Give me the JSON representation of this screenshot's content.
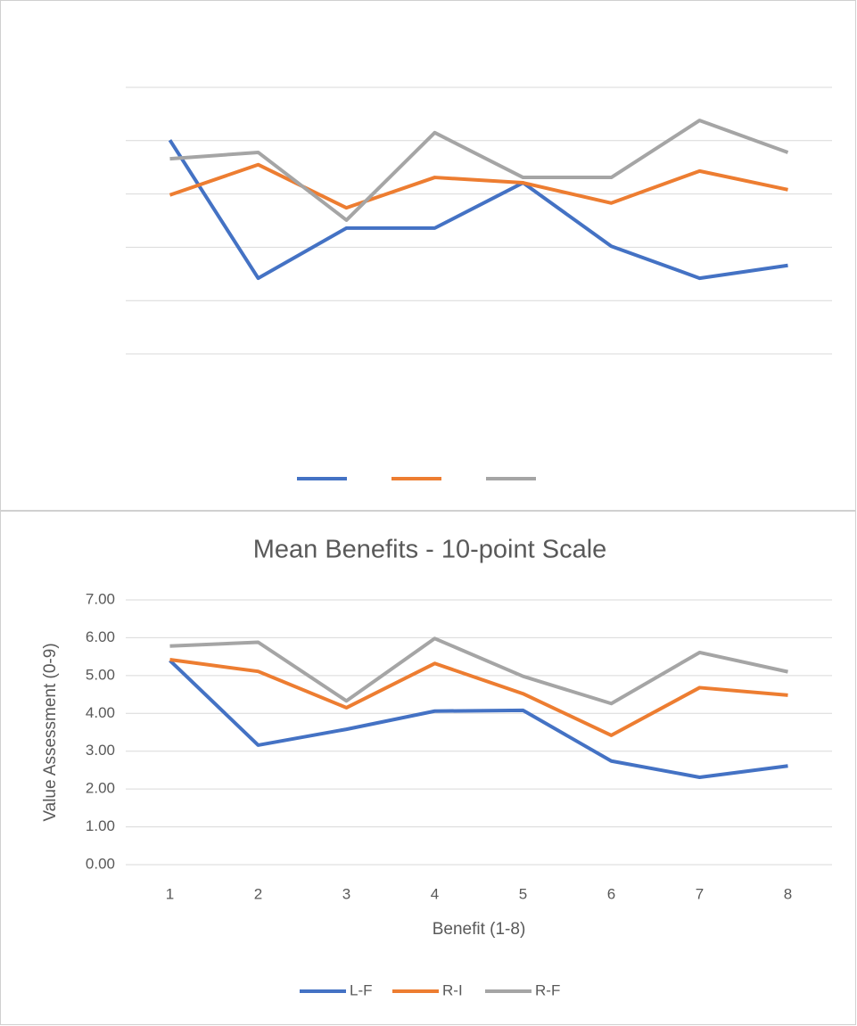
{
  "chart_data": [
    {
      "type": "line",
      "ylim": [
        0,
        5
      ],
      "yticks": [
        0,
        1,
        2,
        3,
        4,
        5
      ],
      "tick_labels": false,
      "grid": true,
      "legend": "bottom",
      "series": [
        {
          "color": "#4472c4",
          "values": [
            4.01,
            1.42,
            2.36,
            2.36,
            3.21,
            2.02,
            1.42,
            1.66
          ]
        },
        {
          "color": "#ed7d31",
          "values": [
            2.98,
            3.55,
            2.74,
            3.31,
            3.21,
            2.83,
            3.43,
            3.08
          ]
        },
        {
          "color": "#a5a5a5",
          "values": [
            3.66,
            3.78,
            2.51,
            4.15,
            3.31,
            3.31,
            4.38,
            3.78
          ]
        }
      ]
    },
    {
      "type": "line",
      "title": "Mean Benefits - 10-point Scale",
      "y_label": "Value Assessment (0-9)",
      "x_label": "Benefit (1-8)",
      "categories": [
        "1",
        "2",
        "3",
        "4",
        "5",
        "6",
        "7",
        "8"
      ],
      "ylim": [
        0,
        7
      ],
      "yticks": [
        {
          "value": 0,
          "label": "0.00"
        },
        {
          "value": 1,
          "label": "1.00"
        },
        {
          "value": 2,
          "label": "2.00"
        },
        {
          "value": 3,
          "label": "3.00"
        },
        {
          "value": 4,
          "label": "4.00"
        },
        {
          "value": 5,
          "label": "5.00"
        },
        {
          "value": 6,
          "label": "6.00"
        },
        {
          "value": 7,
          "label": "7.00"
        }
      ],
      "tick_labels": true,
      "grid": true,
      "legend": "bottom",
      "series": [
        {
          "name": "L-F",
          "color": "#4472c4",
          "values": [
            5.4,
            3.16,
            3.58,
            4.06,
            4.08,
            2.74,
            2.31,
            2.61
          ]
        },
        {
          "name": "R-I",
          "color": "#ed7d31",
          "values": [
            5.42,
            5.11,
            4.15,
            5.32,
            4.52,
            3.42,
            4.68,
            4.48
          ]
        },
        {
          "name": "R-F",
          "color": "#a5a5a5",
          "values": [
            5.78,
            5.88,
            4.33,
            5.98,
            4.98,
            4.26,
            5.61,
            5.1
          ]
        }
      ]
    }
  ]
}
